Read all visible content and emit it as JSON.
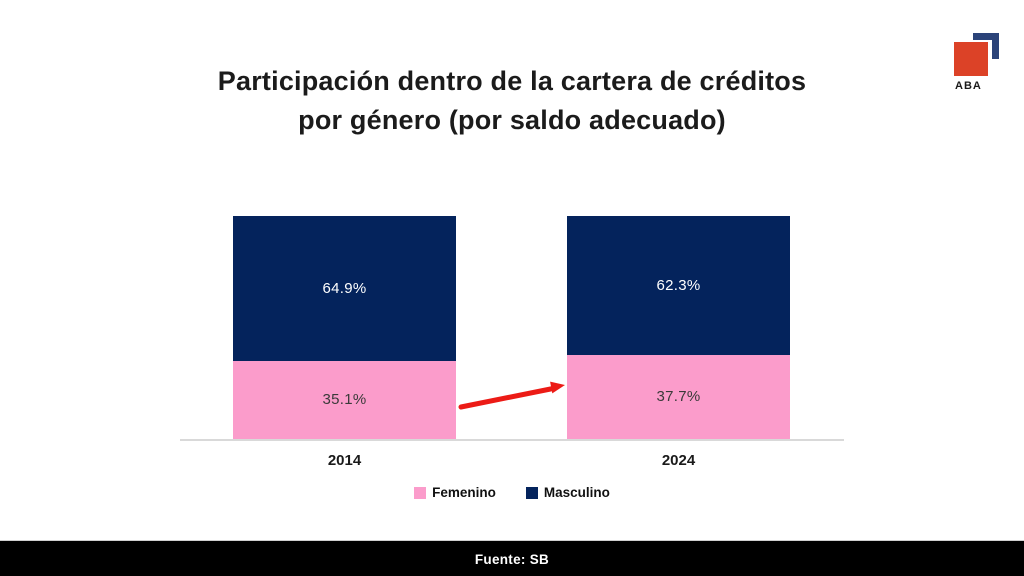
{
  "slide": {
    "title_line1": "Participación dentro de la cartera de créditos",
    "title_line2": "por género (por saldo adecuado)"
  },
  "logo": {
    "text": "ABA",
    "square_color": "#DC4227",
    "corner_color": "#2B4379",
    "text_color": "#1A1A1A"
  },
  "footer": {
    "text": "Fuente: SB",
    "background": "#000000",
    "text_color": "#FFFFFF"
  },
  "chart_data": {
    "type": "bar",
    "subtype": "100%-stacked-column",
    "title": "Participación dentro de la cartera de créditos por género (por saldo adecuado)",
    "categories": [
      "2014",
      "2024"
    ],
    "series": [
      {
        "name": "Femenino",
        "color": "#FB9CCB",
        "label_color": "#3A3A3A",
        "values": [
          35.1,
          37.7
        ]
      },
      {
        "name": "Masculino",
        "color": "#04235C",
        "label_color": "#FFFFFF",
        "values": [
          64.9,
          62.3
        ]
      }
    ],
    "value_suffix": "%",
    "stack_order_top_to_bottom": [
      "Masculino",
      "Femenino"
    ],
    "legend_position": "bottom",
    "axis_line_color": "#D9D9D9",
    "ylim": [
      0,
      100
    ],
    "grid": "off",
    "annotation_arrow": {
      "color": "#EC1B16",
      "from": "2014 Femenino segment",
      "to": "2024 Femenino segment"
    }
  }
}
